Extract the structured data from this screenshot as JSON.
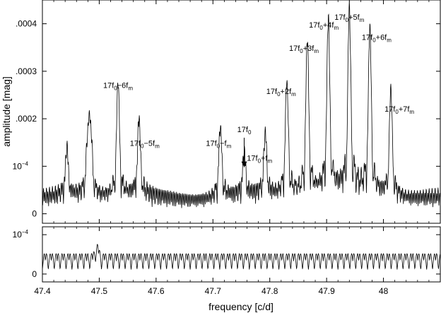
{
  "chart_data": [
    {
      "type": "line",
      "panel": "top",
      "ylabel": "amplitude [mag]",
      "xlim": [
        47.4,
        48.1
      ],
      "ylim": [
        -2e-05,
        0.00045
      ],
      "grid": false,
      "xticks": [
        47.4,
        47.5,
        47.6,
        47.7,
        47.8,
        47.9,
        48.0
      ],
      "yticks": [
        {
          "value": 0,
          "label": "0"
        },
        {
          "value": 0.0001,
          "label": "10",
          "exp": "−4"
        },
        {
          "value": 0.0002,
          "label": ".0002"
        },
        {
          "value": 0.0003,
          "label": ".0003"
        },
        {
          "value": 0.0004,
          "label": ".0004"
        }
      ],
      "peaks": [
        {
          "x": 47.533,
          "y": 0.00024
        },
        {
          "x": 47.57,
          "y": 0.00016
        },
        {
          "x": 47.713,
          "y": 0.00015
        },
        {
          "x": 47.755,
          "y": 9e-05
        },
        {
          "x": 47.792,
          "y": 0.00013
        },
        {
          "x": 47.83,
          "y": 0.00024
        },
        {
          "x": 47.866,
          "y": 0.000325
        },
        {
          "x": 47.903,
          "y": 0.00036
        },
        {
          "x": 47.94,
          "y": 0.00038
        },
        {
          "x": 47.976,
          "y": 0.000345
        },
        {
          "x": 48.013,
          "y": 0.000225
        },
        {
          "x": 47.443,
          "y": 0.0001
        },
        {
          "x": 47.48,
          "y": 0.000125
        },
        {
          "x": 47.485,
          "y": 0.000135
        }
      ],
      "annotations": [
        {
          "base": "17f",
          "sub": "0",
          "rest": "−6f",
          "sub2": "m",
          "x": 47.533,
          "y": 0.000265
        },
        {
          "base": "17f",
          "sub": "0",
          "rest": "−5f",
          "sub2": "m",
          "x": 47.58,
          "y": 0.000143
        },
        {
          "base": "17f",
          "sub": "0",
          "rest": "−f",
          "sub2": "m",
          "x": 47.71,
          "y": 0.000143
        },
        {
          "base": "17f",
          "sub": "0",
          "rest": "",
          "sub2": "",
          "x": 47.755,
          "y": 0.000172,
          "arrow": true
        },
        {
          "base": "17f",
          "sub": "0",
          "rest": "+f",
          "sub2": "m",
          "x": 47.782,
          "y": 0.000112
        },
        {
          "base": "17f",
          "sub": "0",
          "rest": "+2f",
          "sub2": "m",
          "x": 47.82,
          "y": 0.000252
        },
        {
          "base": "17f",
          "sub": "0",
          "rest": "+3f",
          "sub2": "m",
          "x": 47.86,
          "y": 0.000343
        },
        {
          "base": "17f",
          "sub": "0",
          "rest": "+4f",
          "sub2": "m",
          "x": 47.895,
          "y": 0.000392
        },
        {
          "base": "17f",
          "sub": "0",
          "rest": "+5f",
          "sub2": "m",
          "x": 47.94,
          "y": 0.000408
        },
        {
          "base": "17f",
          "sub": "0",
          "rest": "+6f",
          "sub2": "m",
          "x": 47.988,
          "y": 0.000366
        },
        {
          "base": "17f",
          "sub": "0",
          "rest": "+7f",
          "sub2": "m",
          "x": 48.028,
          "y": 0.000215
        }
      ]
    },
    {
      "type": "line",
      "panel": "bottom",
      "xlabel": "frequency [c/d]",
      "xlim": [
        47.4,
        48.1
      ],
      "ylim": [
        -2e-05,
        0.00012
      ],
      "grid": false,
      "xticks": [
        47.4,
        47.5,
        47.6,
        47.7,
        47.8,
        47.9,
        48.0
      ],
      "yticks": [
        {
          "value": 0,
          "label": "0"
        },
        {
          "value": 0.0001,
          "label": "10",
          "exp": "−4"
        }
      ],
      "window_period": 0.0104,
      "window_peak_amplitude": 6e-05,
      "window_max": {
        "x": 47.496,
        "y": 8.5e-05
      }
    }
  ]
}
